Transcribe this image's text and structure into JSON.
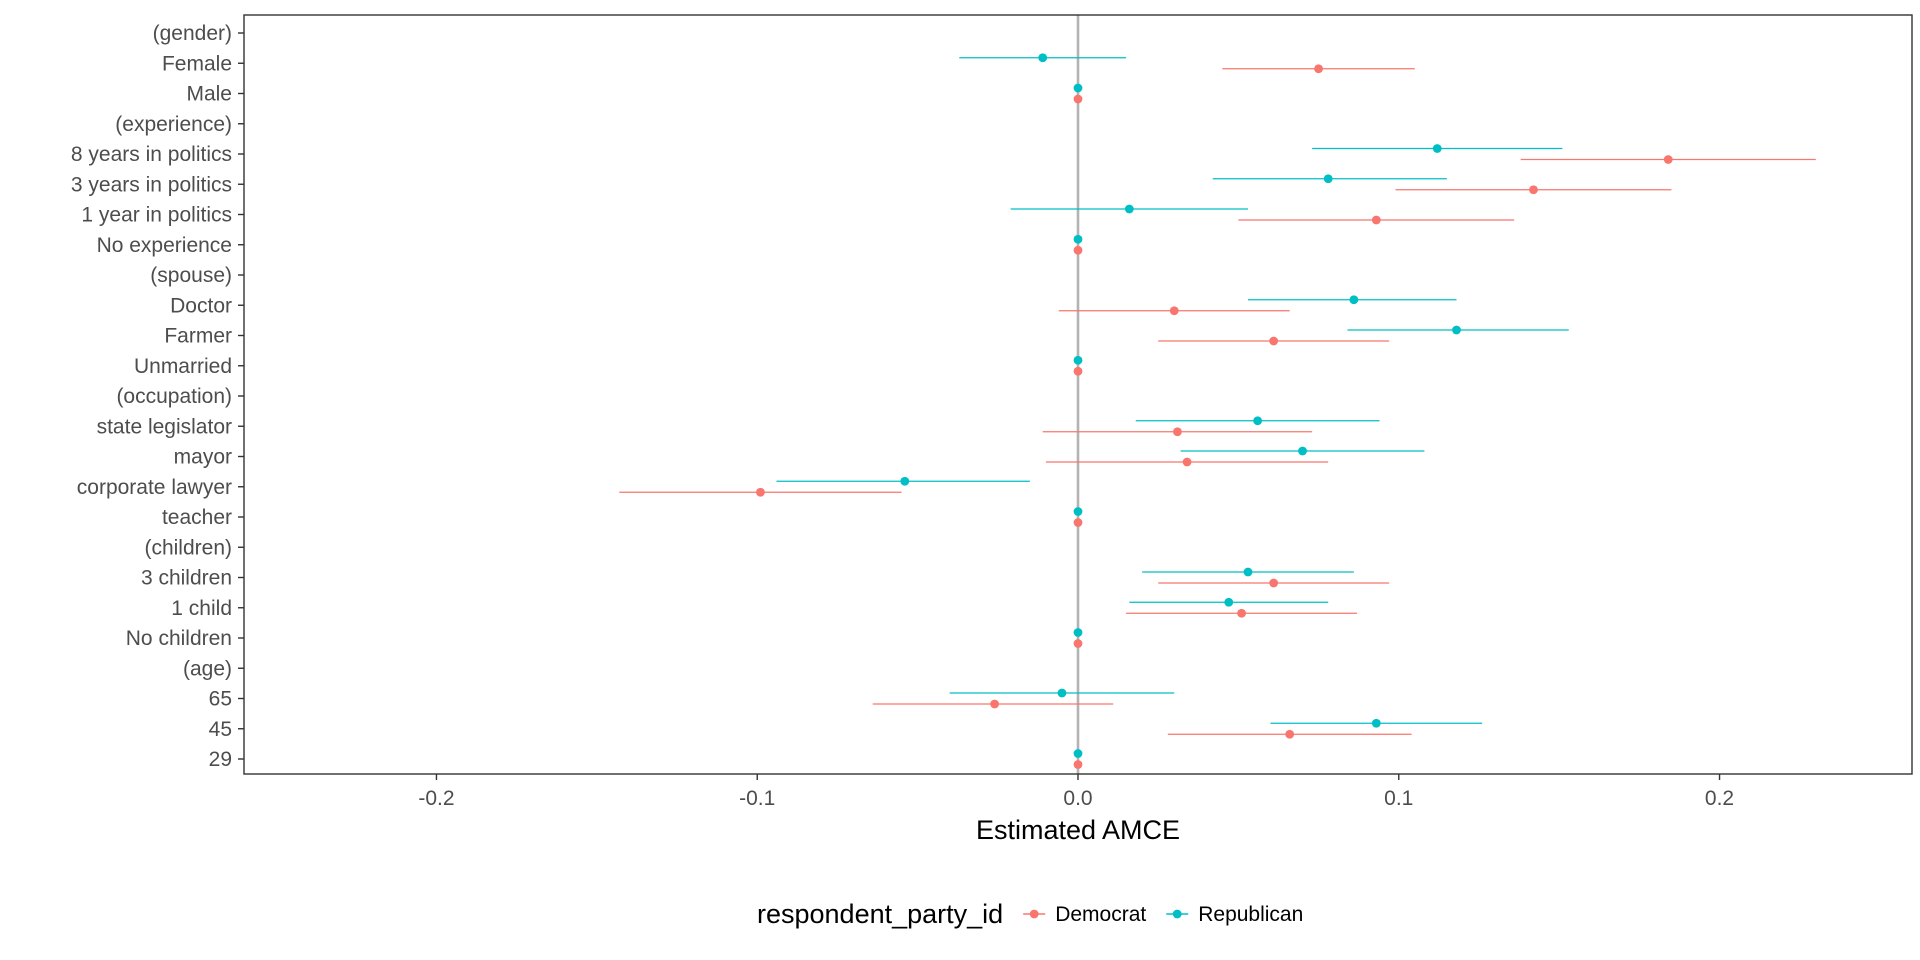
{
  "chart_data": {
    "type": "scatter",
    "subtype": "coefficient-plot-with-error-bars",
    "orientation": "horizontal",
    "xlabel": "Estimated AMCE",
    "ylabel": "",
    "xlim": [
      -0.26,
      0.26
    ],
    "x_ticks": [
      -0.2,
      -0.1,
      0.0,
      0.1,
      0.2
    ],
    "x_tick_labels": [
      "-0.2",
      "-0.1",
      "0.0",
      "0.1",
      "0.2"
    ],
    "reference_line_x": 0,
    "grid": false,
    "legend": {
      "position": "bottom",
      "title": "respondent_party_id"
    },
    "categories": [
      "(gender)",
      "Female",
      "Male",
      "(experience)",
      "8 years in politics",
      "3 years in politics",
      "1 year in politics",
      "No experience",
      "(spouse)",
      "Doctor",
      "Farmer",
      "Unmarried",
      "(occupation)",
      "state legislator",
      "mayor",
      "corporate lawyer",
      "teacher",
      "(children)",
      "3 children",
      "1 child",
      "No children",
      "(age)",
      "65",
      "45",
      "29"
    ],
    "series": [
      {
        "name": "Democrat",
        "color": "#F8766D",
        "points": [
          null,
          {
            "estimate": 0.075,
            "lower": 0.045,
            "upper": 0.105
          },
          {
            "estimate": 0.0,
            "lower": 0.0,
            "upper": 0.0
          },
          null,
          {
            "estimate": 0.184,
            "lower": 0.138,
            "upper": 0.23
          },
          {
            "estimate": 0.142,
            "lower": 0.099,
            "upper": 0.185
          },
          {
            "estimate": 0.093,
            "lower": 0.05,
            "upper": 0.136
          },
          {
            "estimate": 0.0,
            "lower": 0.0,
            "upper": 0.0
          },
          null,
          {
            "estimate": 0.03,
            "lower": -0.006,
            "upper": 0.066
          },
          {
            "estimate": 0.061,
            "lower": 0.025,
            "upper": 0.097
          },
          {
            "estimate": 0.0,
            "lower": 0.0,
            "upper": 0.0
          },
          null,
          {
            "estimate": 0.031,
            "lower": -0.011,
            "upper": 0.073
          },
          {
            "estimate": 0.034,
            "lower": -0.01,
            "upper": 0.078
          },
          {
            "estimate": -0.099,
            "lower": -0.143,
            "upper": -0.055
          },
          {
            "estimate": 0.0,
            "lower": 0.0,
            "upper": 0.0
          },
          null,
          {
            "estimate": 0.061,
            "lower": 0.025,
            "upper": 0.097
          },
          {
            "estimate": 0.051,
            "lower": 0.015,
            "upper": 0.087
          },
          {
            "estimate": 0.0,
            "lower": 0.0,
            "upper": 0.0
          },
          null,
          {
            "estimate": -0.026,
            "lower": -0.064,
            "upper": 0.011
          },
          {
            "estimate": 0.066,
            "lower": 0.028,
            "upper": 0.104
          },
          {
            "estimate": 0.0,
            "lower": 0.0,
            "upper": 0.0
          }
        ]
      },
      {
        "name": "Republican",
        "color": "#00BFC4",
        "points": [
          null,
          {
            "estimate": -0.011,
            "lower": -0.037,
            "upper": 0.015
          },
          {
            "estimate": 0.0,
            "lower": 0.0,
            "upper": 0.0
          },
          null,
          {
            "estimate": 0.112,
            "lower": 0.073,
            "upper": 0.151
          },
          {
            "estimate": 0.078,
            "lower": 0.042,
            "upper": 0.115
          },
          {
            "estimate": 0.016,
            "lower": -0.021,
            "upper": 0.053
          },
          {
            "estimate": 0.0,
            "lower": 0.0,
            "upper": 0.0
          },
          null,
          {
            "estimate": 0.086,
            "lower": 0.053,
            "upper": 0.118
          },
          {
            "estimate": 0.118,
            "lower": 0.084,
            "upper": 0.153
          },
          {
            "estimate": 0.0,
            "lower": 0.0,
            "upper": 0.0
          },
          null,
          {
            "estimate": 0.056,
            "lower": 0.018,
            "upper": 0.094
          },
          {
            "estimate": 0.07,
            "lower": 0.032,
            "upper": 0.108
          },
          {
            "estimate": -0.054,
            "lower": -0.094,
            "upper": -0.015
          },
          {
            "estimate": 0.0,
            "lower": 0.0,
            "upper": 0.0
          },
          null,
          {
            "estimate": 0.053,
            "lower": 0.02,
            "upper": 0.086
          },
          {
            "estimate": 0.047,
            "lower": 0.016,
            "upper": 0.078
          },
          {
            "estimate": 0.0,
            "lower": 0.0,
            "upper": 0.0
          },
          null,
          {
            "estimate": -0.005,
            "lower": -0.04,
            "upper": 0.03
          },
          {
            "estimate": 0.093,
            "lower": 0.06,
            "upper": 0.126
          },
          {
            "estimate": 0.0,
            "lower": 0.0,
            "upper": 0.0
          }
        ]
      }
    ]
  }
}
